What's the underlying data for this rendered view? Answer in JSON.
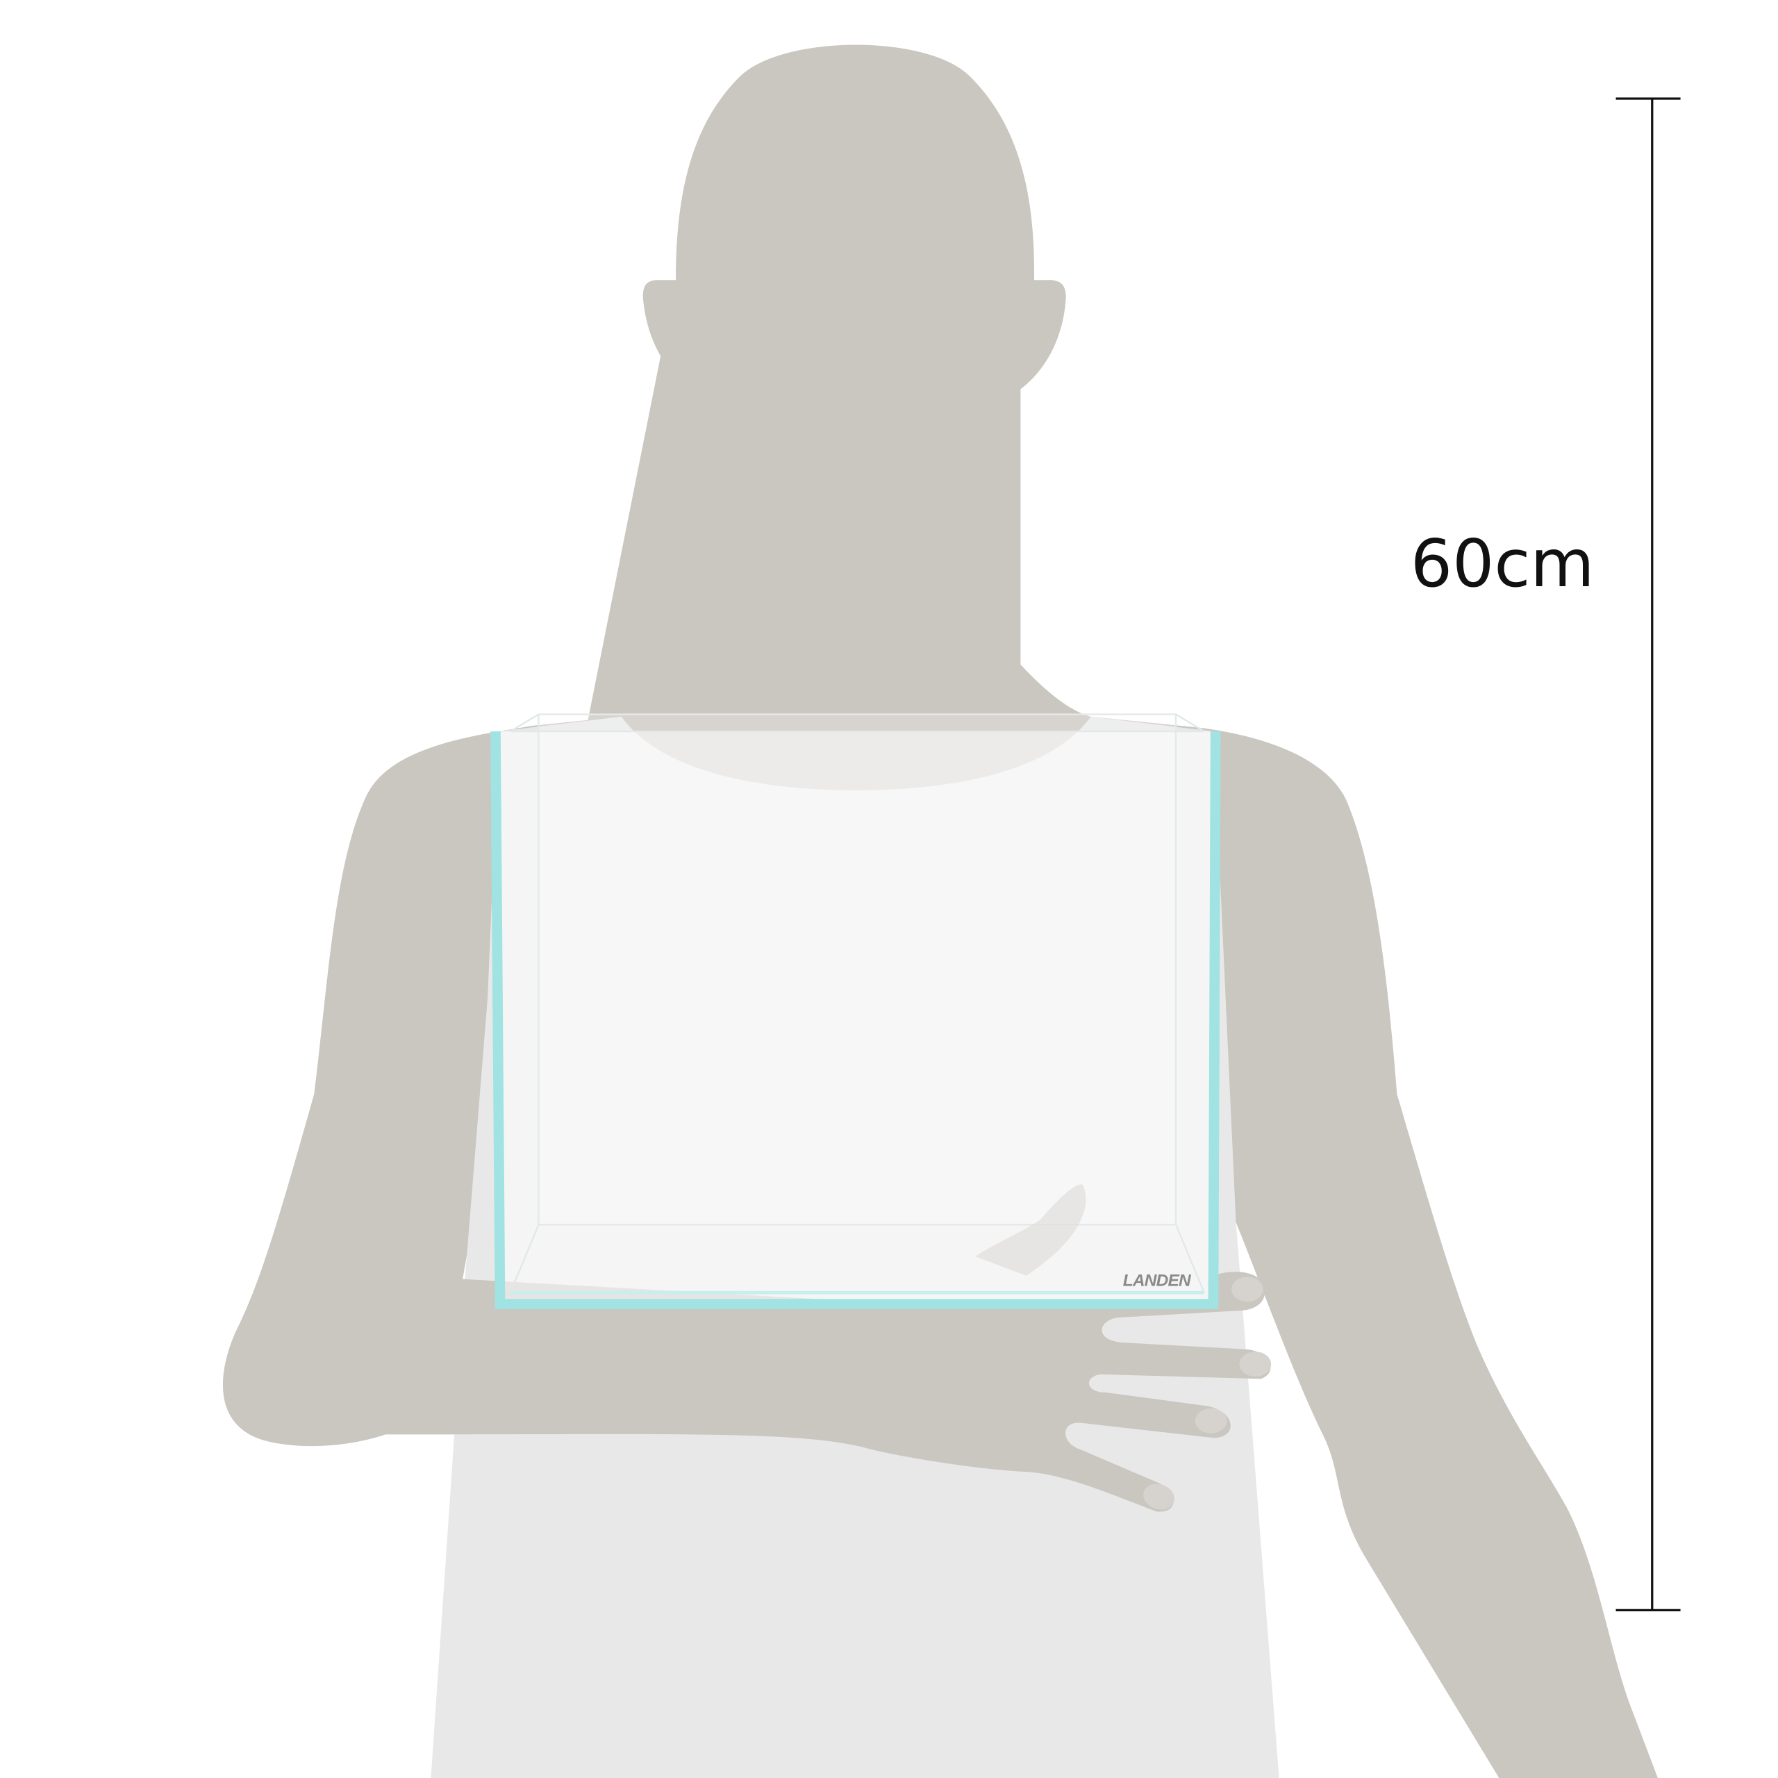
{
  "dimension_label": "60cm",
  "brand": "LANDEN"
}
